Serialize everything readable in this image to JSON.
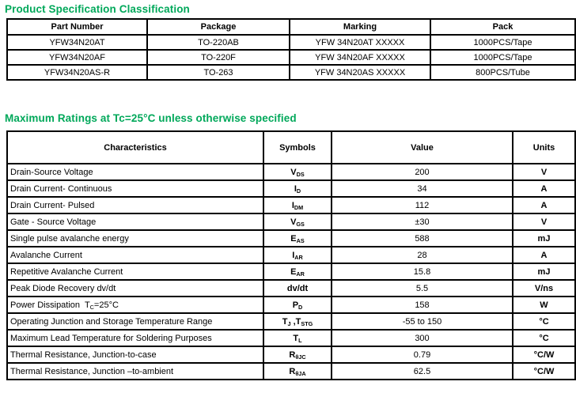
{
  "colors": {
    "accent_green": "#00a85a",
    "table_border": "#000000",
    "text": "#000000",
    "background": "#ffffff"
  },
  "spec_section": {
    "title": "Product Specification Classification",
    "headers": [
      "Part Number",
      "Package",
      "Marking",
      "Pack"
    ],
    "rows": [
      [
        "YFW34N20AT",
        "TO-220AB",
        "YFW 34N20AT XXXXX",
        "1000PCS/Tape"
      ],
      [
        "YFW34N20AF",
        "TO-220F",
        "YFW 34N20AF XXXXX",
        "1000PCS/Tape"
      ],
      [
        "YFW34N20AS-R",
        "TO-263",
        "YFW 34N20AS XXXXX",
        "800PCS/Tube"
      ]
    ]
  },
  "ratings_section": {
    "title": "Maximum Ratings at Tc=25°C unless otherwise specified",
    "headers": [
      "Characteristics",
      "Symbols",
      "Value",
      "Units"
    ],
    "rows": [
      [
        "Drain-Source Voltage",
        "V_{DS}",
        "200",
        "V"
      ],
      [
        "Drain Current- Continuous",
        "I_{D}",
        "34",
        "A"
      ],
      [
        "Drain Current- Pulsed",
        "I_{DM}",
        "112",
        "A"
      ],
      [
        "Gate - Source Voltage",
        "V_{GS}",
        "±30",
        "V"
      ],
      [
        "Single pulse avalanche energy",
        "E_{AS}",
        "588",
        "mJ"
      ],
      [
        "Avalanche Current",
        "I_{AR}",
        "28",
        "A"
      ],
      [
        "Repetitive Avalanche Current",
        "E_{AR}",
        "15.8",
        "mJ"
      ],
      [
        "Peak Diode Recovery dv/dt",
        "dv/dt",
        "5.5",
        "V/ns"
      ],
      [
        "Power Dissipation  T_{C}=25°C",
        "P_{D}",
        "158",
        "W"
      ],
      [
        "Operating Junction and Storage Temperature Range",
        "T_{J} ,T_{STG}",
        "-55 to 150",
        "°C"
      ],
      [
        "Maximum Lead Temperature for Soldering Purposes",
        "T_{L}",
        "300",
        "°C"
      ],
      [
        "Thermal Resistance, Junction-to-case",
        "R_{θJC}",
        "0.79",
        "°C/W"
      ],
      [
        "Thermal Resistance, Junction –to-ambient",
        "R_{θJA}",
        "62.5",
        "°C/W"
      ]
    ]
  }
}
